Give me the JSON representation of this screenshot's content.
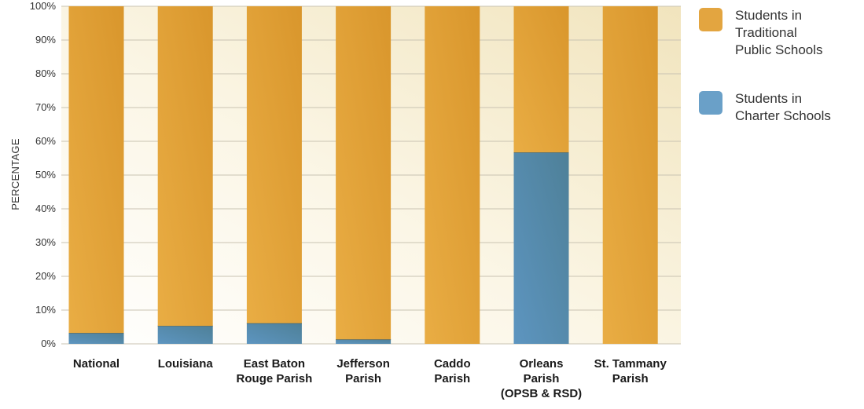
{
  "chart_data": {
    "type": "bar",
    "stacked": true,
    "ylabel": "PERCENTAGE",
    "ylim": [
      0,
      100
    ],
    "yticks": [
      "0%",
      "10%",
      "20%",
      "30%",
      "40%",
      "50%",
      "60%",
      "70%",
      "80%",
      "90%",
      "100%"
    ],
    "categories": [
      [
        "National"
      ],
      [
        "Louisiana"
      ],
      [
        "East Baton",
        "Rouge Parish"
      ],
      [
        "Jefferson",
        "Parish"
      ],
      [
        "Caddo",
        "Parish"
      ],
      [
        "Orleans",
        "Parish",
        "(OPSB & RSD)"
      ],
      [
        "St. Tammany",
        "Parish"
      ]
    ],
    "series": [
      {
        "name": "Students in Charter Schools",
        "values": [
          3.2,
          5.3,
          6.1,
          1.3,
          0,
          56.7,
          0
        ],
        "color": "#5b8db3"
      },
      {
        "name": "Students in Traditional Public Schools",
        "values": [
          96.8,
          94.7,
          93.9,
          98.7,
          100,
          43.3,
          100
        ],
        "color": "#e3a540"
      }
    ],
    "legend": {
      "position": "right",
      "entries": [
        {
          "lines": [
            "Students in",
            "Traditional",
            "Public Schools"
          ],
          "color": "#e3a540"
        },
        {
          "lines": [
            "Students in",
            "Charter Schools"
          ],
          "color": "#6aa0c8"
        }
      ]
    },
    "grid": true
  }
}
